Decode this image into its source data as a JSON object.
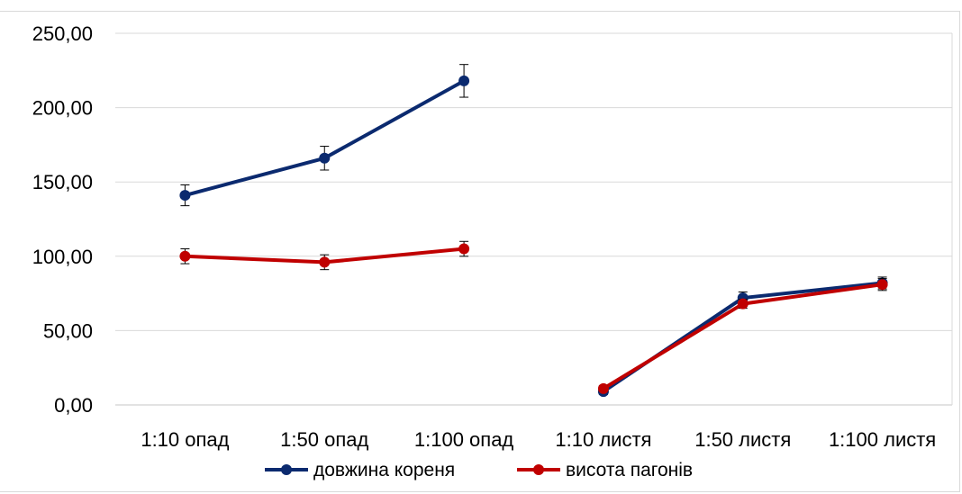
{
  "chart_data": {
    "type": "line",
    "categories": [
      "1:10 опад",
      "1:50 опад",
      "1:100 опад",
      "1:10 листя",
      "1:50 листя",
      "1:100 листя"
    ],
    "ylim": [
      0,
      250
    ],
    "yticks": [
      0,
      50,
      100,
      150,
      200,
      250
    ],
    "ytick_labels": [
      "0,00",
      "50,00",
      "100,00",
      "150,00",
      "200,00",
      "250,00"
    ],
    "title": "",
    "xlabel": "",
    "ylabel": "",
    "grid": true,
    "legend_position": "bottom",
    "error_bars": true,
    "series": [
      {
        "name": "довжина кореня",
        "color": "#0b2a6f",
        "values": [
          141,
          166,
          218,
          null,
          null,
          null
        ],
        "errors": [
          7,
          8,
          11,
          null,
          null,
          null
        ]
      },
      {
        "name": "довжина кореня",
        "color": "#0b2a6f",
        "values": [
          null,
          null,
          null,
          9,
          72,
          82
        ],
        "errors": [
          null,
          null,
          null,
          2,
          4,
          4
        ],
        "legend": false
      },
      {
        "name": "висота пагонів",
        "color": "#c00000",
        "values": [
          100,
          96,
          105,
          null,
          null,
          null
        ],
        "errors": [
          5,
          5,
          5,
          null,
          null,
          null
        ]
      },
      {
        "name": "висота пагонів",
        "color": "#c00000",
        "values": [
          null,
          null,
          null,
          11,
          68,
          81
        ],
        "errors": [
          null,
          null,
          null,
          2,
          3,
          4
        ],
        "legend": false
      }
    ],
    "legend": [
      {
        "label": "довжина кореня",
        "color": "#0b2a6f"
      },
      {
        "label": "висота пагонів",
        "color": "#c00000"
      }
    ]
  }
}
